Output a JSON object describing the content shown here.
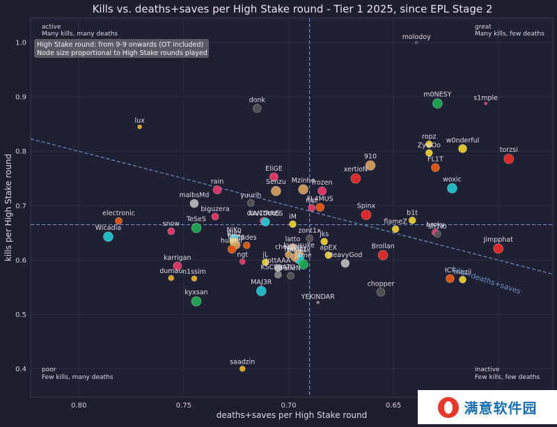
{
  "chart_data": {
    "type": "scatter",
    "title": "Kills vs. deaths+saves per High Stake round - Tier 1 2025, since EPL Stage 2",
    "xlabel": "deaths+saves per High Stake round",
    "ylabel": "kills per High Stake round",
    "x_inverted": true,
    "xlim": [
      0.823,
      0.574
    ],
    "ylim": [
      0.348,
      1.045
    ],
    "xticks": [
      0.8,
      0.75,
      0.7,
      0.65,
      0.6
    ],
    "xtick_labels": [
      "0.80",
      "0.75",
      "0.70",
      "0.65",
      "0.60"
    ],
    "yticks": [
      0.4,
      0.5,
      0.6,
      0.7,
      0.8,
      0.9,
      1.0
    ],
    "ytick_labels": [
      "0.4",
      "0.5",
      "0.6",
      "0.7",
      "0.8",
      "0.9",
      "1.0"
    ],
    "grid": true,
    "mean_lines": {
      "x": 0.69,
      "y": 0.665
    },
    "reference_line": {
      "label": "kills=deaths+saves"
    },
    "info_box": [
      "High Stake round: from 9-9 onwards (OT included)",
      "Node size proportional to High Stake rounds played"
    ],
    "quadrants": [
      {
        "id": "top-left",
        "title": "active",
        "subtitle": "Many kills, many deaths"
      },
      {
        "id": "top-right",
        "title": "great",
        "subtitle": "Many kills, few deaths"
      },
      {
        "id": "bottom-left",
        "title": "poor",
        "subtitle": "Few kills, many deaths"
      },
      {
        "id": "bottom-right",
        "title": "inactive",
        "subtitle": "Few kills, few deaths"
      }
    ],
    "points": [
      {
        "name": "molodoy",
        "x": 0.639,
        "y": 1.0,
        "size": 2,
        "color": "#444444"
      },
      {
        "name": "m0NESY",
        "x": 0.629,
        "y": 0.888,
        "size": 7,
        "color": "#1faa55"
      },
      {
        "name": "s1mple",
        "x": 0.606,
        "y": 0.888,
        "size": 2,
        "color": "#e83a6a"
      },
      {
        "name": "donk",
        "x": 0.715,
        "y": 0.879,
        "size": 6,
        "color": "#555555"
      },
      {
        "name": "lux",
        "x": 0.771,
        "y": 0.845,
        "size": 3,
        "color": "#e8b020"
      },
      {
        "name": "ropz",
        "x": 0.633,
        "y": 0.813,
        "size": 5,
        "color": "#eed030"
      },
      {
        "name": "w0nderful",
        "x": 0.617,
        "y": 0.805,
        "size": 6,
        "color": "#eed030"
      },
      {
        "name": "ZywOo",
        "x": 0.633,
        "y": 0.797,
        "size": 5,
        "color": "#eed030"
      },
      {
        "name": "torzsi",
        "x": 0.595,
        "y": 0.786,
        "size": 7,
        "color": "#e82a2a"
      },
      {
        "name": "910",
        "x": 0.661,
        "y": 0.774,
        "size": 7,
        "color": "#d4a060"
      },
      {
        "name": "FL1T",
        "x": 0.63,
        "y": 0.77,
        "size": 6,
        "color": "#e85a10"
      },
      {
        "name": "EliGE",
        "x": 0.707,
        "y": 0.753,
        "size": 6,
        "color": "#e83a6a"
      },
      {
        "name": "xertioN",
        "x": 0.668,
        "y": 0.75,
        "size": 7,
        "color": "#e82a2a"
      },
      {
        "name": "woxic",
        "x": 0.622,
        "y": 0.732,
        "size": 7,
        "color": "#20c8d0"
      },
      {
        "name": "Senzu",
        "x": 0.706,
        "y": 0.727,
        "size": 7,
        "color": "#d4a060"
      },
      {
        "name": "Mzinho",
        "x": 0.693,
        "y": 0.73,
        "size": 7,
        "color": "#d4a060"
      },
      {
        "name": "rain",
        "x": 0.734,
        "y": 0.729,
        "size": 6,
        "color": "#e83a6a"
      },
      {
        "name": "frozen",
        "x": 0.684,
        "y": 0.727,
        "size": 6,
        "color": "#e83a6a"
      },
      {
        "name": "yuurih",
        "x": 0.718,
        "y": 0.705,
        "size": 5,
        "color": "#555555"
      },
      {
        "name": "malbsMd",
        "x": 0.745,
        "y": 0.704,
        "size": 6,
        "color": "#bbbbbb"
      },
      {
        "name": "FL4MUS",
        "x": 0.685,
        "y": 0.697,
        "size": 6,
        "color": "#e85a10"
      },
      {
        "name": "nqz",
        "x": 0.689,
        "y": 0.696,
        "size": 5,
        "color": "#e83a6a"
      },
      {
        "name": "Spinx",
        "x": 0.663,
        "y": 0.683,
        "size": 7,
        "color": "#e82a2a"
      },
      {
        "name": "b1t",
        "x": 0.641,
        "y": 0.673,
        "size": 5,
        "color": "#eed030"
      },
      {
        "name": "biguzera",
        "x": 0.735,
        "y": 0.68,
        "size": 5,
        "color": "#e83a6a"
      },
      {
        "name": "electronic",
        "x": 0.781,
        "y": 0.672,
        "size": 5,
        "color": "#e85a10"
      },
      {
        "name": "dav1deuS",
        "x": 0.712,
        "y": 0.672,
        "size": 5,
        "color": "#e83a6a"
      },
      {
        "name": "XANTARES",
        "x": 0.711,
        "y": 0.67,
        "size": 6,
        "color": "#20c8d0"
      },
      {
        "name": "iM",
        "x": 0.698,
        "y": 0.666,
        "size": 5,
        "color": "#eed030"
      },
      {
        "name": "flameZ",
        "x": 0.649,
        "y": 0.657,
        "size": 5,
        "color": "#eed030"
      },
      {
        "name": "broky",
        "x": 0.63,
        "y": 0.651,
        "size": 5,
        "color": "#e83a6a"
      },
      {
        "name": "TeSeS",
        "x": 0.744,
        "y": 0.659,
        "size": 7,
        "color": "#1faa55"
      },
      {
        "name": "snow",
        "x": 0.756,
        "y": 0.653,
        "size": 5,
        "color": "#e83a6a"
      },
      {
        "name": "Wicadia",
        "x": 0.786,
        "y": 0.643,
        "size": 7,
        "color": "#20c8d0"
      },
      {
        "name": "sh1ro",
        "x": 0.629,
        "y": 0.648,
        "size": 5,
        "color": "#555555"
      },
      {
        "name": "zont1x",
        "x": 0.69,
        "y": 0.64,
        "size": 5,
        "color": "#555555"
      },
      {
        "name": "jks",
        "x": 0.683,
        "y": 0.634,
        "size": 5,
        "color": "#eed030"
      },
      {
        "name": "NiKo",
        "x": 0.726,
        "y": 0.64,
        "size": 6,
        "color": "#20c8d0"
      },
      {
        "name": "Jimpphat",
        "x": 0.6,
        "y": 0.621,
        "size": 7,
        "color": "#e82a2a"
      },
      {
        "name": "latto",
        "x": 0.698,
        "y": 0.624,
        "size": 5,
        "color": "#d4a060"
      },
      {
        "name": "kyousuke",
        "x": 0.695,
        "y": 0.612,
        "size": 6,
        "color": "#d4a060"
      },
      {
        "name": "chopper",
        "x": 0.7,
        "y": 0.61,
        "size": 5,
        "color": "#d4a060"
      },
      {
        "name": "apEX",
        "x": 0.681,
        "y": 0.609,
        "size": 5,
        "color": "#eed030"
      },
      {
        "name": "Blitz",
        "x": 0.726,
        "y": 0.633,
        "size": 6,
        "color": "#eed030"
      },
      {
        "name": "fame",
        "x": 0.725,
        "y": 0.628,
        "size": 6,
        "color": "#d4a060"
      },
      {
        "name": "hades",
        "x": 0.72,
        "y": 0.627,
        "size": 5,
        "color": "#e85a10"
      },
      {
        "name": "huNter",
        "x": 0.727,
        "y": 0.62,
        "size": 6,
        "color": "#e85a10"
      },
      {
        "name": "Brollan",
        "x": 0.655,
        "y": 0.609,
        "size": 7,
        "color": "#e82a2a"
      },
      {
        "name": "HeavyGod",
        "x": 0.673,
        "y": 0.594,
        "size": 6,
        "color": "#bbbbbb"
      },
      {
        "name": "Magisk",
        "x": 0.695,
        "y": 0.602,
        "size": 7,
        "color": "#20c8d0"
      },
      {
        "name": "jL",
        "x": 0.711,
        "y": 0.596,
        "size": 5,
        "color": "#eed030"
      },
      {
        "name": "Twistzz",
        "x": 0.697,
        "y": 0.605,
        "size": 6,
        "color": "#d4a060"
      },
      {
        "name": "Jame",
        "x": 0.693,
        "y": 0.592,
        "size": 7,
        "color": "#1faa55"
      },
      {
        "name": "jottAAA",
        "x": 0.705,
        "y": 0.585,
        "size": 5,
        "color": "#bbbbbb"
      },
      {
        "name": "karrigan",
        "x": 0.753,
        "y": 0.589,
        "size": 6,
        "color": "#e83a6a"
      },
      {
        "name": "ngt",
        "x": 0.722,
        "y": 0.597,
        "size": 4,
        "color": "#e83a6a"
      },
      {
        "name": "KSCERATO",
        "x": 0.705,
        "y": 0.573,
        "size": 5,
        "color": "#888888"
      },
      {
        "name": "ICY",
        "x": 0.623,
        "y": 0.566,
        "size": 6,
        "color": "#e85a10"
      },
      {
        "name": "mezii",
        "x": 0.617,
        "y": 0.564,
        "size": 5,
        "color": "#eed030"
      },
      {
        "name": "n1ssim",
        "x": 0.745,
        "y": 0.566,
        "size": 4,
        "color": "#e8b020"
      },
      {
        "name": "dumau",
        "x": 0.756,
        "y": 0.567,
        "size": 4,
        "color": "#e8b020"
      },
      {
        "name": "FalleN",
        "x": 0.699,
        "y": 0.571,
        "size": 5,
        "color": "#555555"
      },
      {
        "name": "MAJ3R",
        "x": 0.713,
        "y": 0.543,
        "size": 7,
        "color": "#20c8d0"
      },
      {
        "name": "chopper",
        "x": 0.656,
        "y": 0.541,
        "size": 6,
        "color": "#555555"
      },
      {
        "name": "kyxsan",
        "x": 0.744,
        "y": 0.524,
        "size": 7,
        "color": "#1faa55"
      },
      {
        "name": "YEKINDAR",
        "x": 0.686,
        "y": 0.522,
        "size": 2,
        "color": "#888888"
      },
      {
        "name": "saadzin",
        "x": 0.722,
        "y": 0.4,
        "size": 4,
        "color": "#e8b020"
      }
    ]
  },
  "watermark": {
    "text": "满意软件园"
  }
}
